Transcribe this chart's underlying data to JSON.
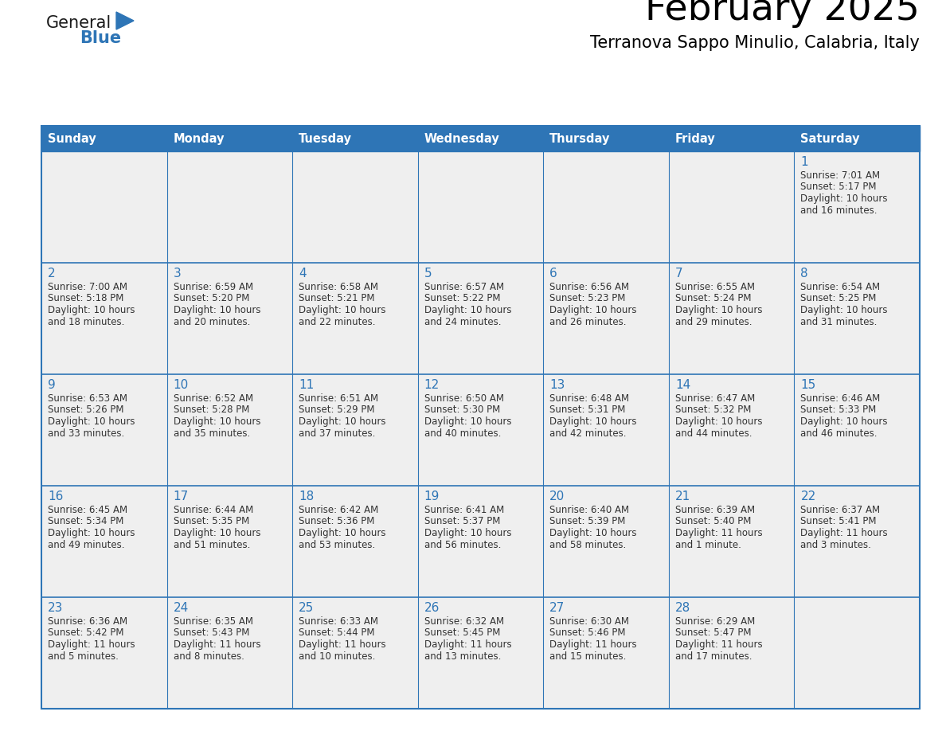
{
  "title": "February 2025",
  "subtitle": "Terranova Sappo Minulio, Calabria, Italy",
  "days_of_week": [
    "Sunday",
    "Monday",
    "Tuesday",
    "Wednesday",
    "Thursday",
    "Friday",
    "Saturday"
  ],
  "header_bg": "#2E75B6",
  "header_text": "#FFFFFF",
  "cell_bg": "#EFEFEF",
  "border_color": "#2E75B6",
  "title_color": "#000000",
  "subtitle_color": "#000000",
  "day_num_color": "#2E75B6",
  "cell_text_color": "#333333",
  "calendar_data": [
    [
      null,
      null,
      null,
      null,
      null,
      null,
      {
        "day": 1,
        "sunrise": "7:01 AM",
        "sunset": "5:17 PM",
        "daylight": "10 hours and 16 minutes."
      }
    ],
    [
      {
        "day": 2,
        "sunrise": "7:00 AM",
        "sunset": "5:18 PM",
        "daylight": "10 hours and 18 minutes."
      },
      {
        "day": 3,
        "sunrise": "6:59 AM",
        "sunset": "5:20 PM",
        "daylight": "10 hours and 20 minutes."
      },
      {
        "day": 4,
        "sunrise": "6:58 AM",
        "sunset": "5:21 PM",
        "daylight": "10 hours and 22 minutes."
      },
      {
        "day": 5,
        "sunrise": "6:57 AM",
        "sunset": "5:22 PM",
        "daylight": "10 hours and 24 minutes."
      },
      {
        "day": 6,
        "sunrise": "6:56 AM",
        "sunset": "5:23 PM",
        "daylight": "10 hours and 26 minutes."
      },
      {
        "day": 7,
        "sunrise": "6:55 AM",
        "sunset": "5:24 PM",
        "daylight": "10 hours and 29 minutes."
      },
      {
        "day": 8,
        "sunrise": "6:54 AM",
        "sunset": "5:25 PM",
        "daylight": "10 hours and 31 minutes."
      }
    ],
    [
      {
        "day": 9,
        "sunrise": "6:53 AM",
        "sunset": "5:26 PM",
        "daylight": "10 hours and 33 minutes."
      },
      {
        "day": 10,
        "sunrise": "6:52 AM",
        "sunset": "5:28 PM",
        "daylight": "10 hours and 35 minutes."
      },
      {
        "day": 11,
        "sunrise": "6:51 AM",
        "sunset": "5:29 PM",
        "daylight": "10 hours and 37 minutes."
      },
      {
        "day": 12,
        "sunrise": "6:50 AM",
        "sunset": "5:30 PM",
        "daylight": "10 hours and 40 minutes."
      },
      {
        "day": 13,
        "sunrise": "6:48 AM",
        "sunset": "5:31 PM",
        "daylight": "10 hours and 42 minutes."
      },
      {
        "day": 14,
        "sunrise": "6:47 AM",
        "sunset": "5:32 PM",
        "daylight": "10 hours and 44 minutes."
      },
      {
        "day": 15,
        "sunrise": "6:46 AM",
        "sunset": "5:33 PM",
        "daylight": "10 hours and 46 minutes."
      }
    ],
    [
      {
        "day": 16,
        "sunrise": "6:45 AM",
        "sunset": "5:34 PM",
        "daylight": "10 hours and 49 minutes."
      },
      {
        "day": 17,
        "sunrise": "6:44 AM",
        "sunset": "5:35 PM",
        "daylight": "10 hours and 51 minutes."
      },
      {
        "day": 18,
        "sunrise": "6:42 AM",
        "sunset": "5:36 PM",
        "daylight": "10 hours and 53 minutes."
      },
      {
        "day": 19,
        "sunrise": "6:41 AM",
        "sunset": "5:37 PM",
        "daylight": "10 hours and 56 minutes."
      },
      {
        "day": 20,
        "sunrise": "6:40 AM",
        "sunset": "5:39 PM",
        "daylight": "10 hours and 58 minutes."
      },
      {
        "day": 21,
        "sunrise": "6:39 AM",
        "sunset": "5:40 PM",
        "daylight": "11 hours and 1 minute."
      },
      {
        "day": 22,
        "sunrise": "6:37 AM",
        "sunset": "5:41 PM",
        "daylight": "11 hours and 3 minutes."
      }
    ],
    [
      {
        "day": 23,
        "sunrise": "6:36 AM",
        "sunset": "5:42 PM",
        "daylight": "11 hours and 5 minutes."
      },
      {
        "day": 24,
        "sunrise": "6:35 AM",
        "sunset": "5:43 PM",
        "daylight": "11 hours and 8 minutes."
      },
      {
        "day": 25,
        "sunrise": "6:33 AM",
        "sunset": "5:44 PM",
        "daylight": "11 hours and 10 minutes."
      },
      {
        "day": 26,
        "sunrise": "6:32 AM",
        "sunset": "5:45 PM",
        "daylight": "11 hours and 13 minutes."
      },
      {
        "day": 27,
        "sunrise": "6:30 AM",
        "sunset": "5:46 PM",
        "daylight": "11 hours and 15 minutes."
      },
      {
        "day": 28,
        "sunrise": "6:29 AM",
        "sunset": "5:47 PM",
        "daylight": "11 hours and 17 minutes."
      },
      null
    ]
  ]
}
